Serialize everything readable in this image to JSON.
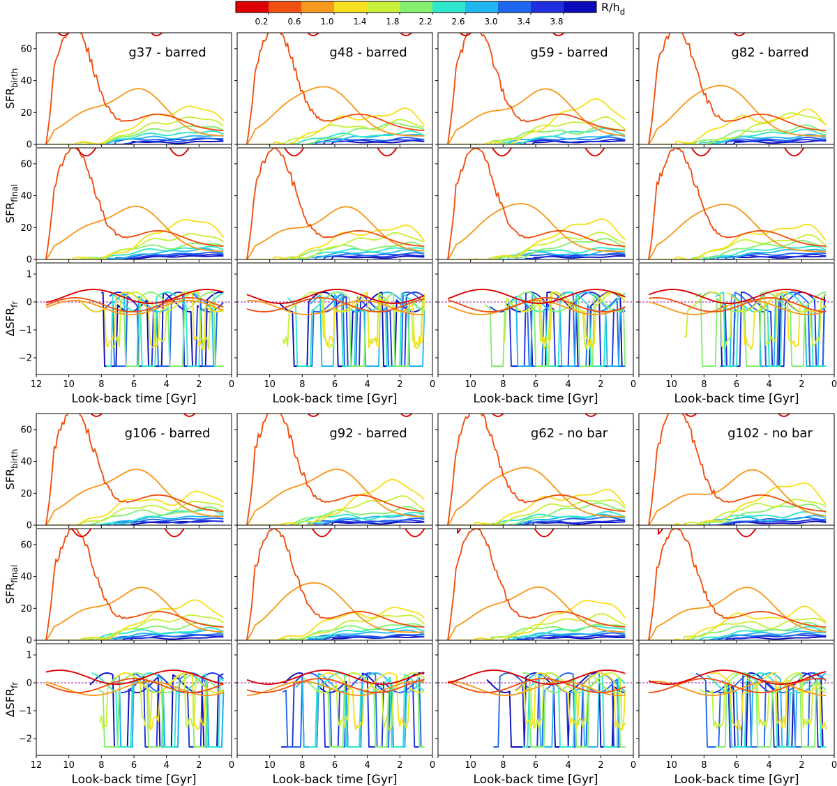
{
  "chart_data": {
    "type": "line",
    "colorbar": {
      "title": "R/h",
      "title_sub": "d",
      "tick_labels": [
        "0.2",
        "0.6",
        "1.0",
        "1.4",
        "1.8",
        "2.2",
        "2.6",
        "3.0",
        "3.4",
        "3.8"
      ],
      "colors": [
        "#dc0000",
        "#f05010",
        "#f79a1f",
        "#f7e020",
        "#c8f03a",
        "#86ef70",
        "#2ee7cc",
        "#21b6f0",
        "#2067ef",
        "#1f2fe0",
        "#0a0ab8"
      ]
    },
    "row_labels": {
      "birth": {
        "main": "SFR",
        "sub": "birth"
      },
      "final": {
        "main": "SFR",
        "sub": "final"
      },
      "delta": {
        "main": "ΔSFR",
        "sub": "fr"
      }
    },
    "xlabel": "Look-back time [Gyr]",
    "xlim": [
      12,
      0
    ],
    "x_ticks": [
      "12",
      "10",
      "8",
      "6",
      "4",
      "2",
      "0"
    ],
    "sfr_ylim": [
      0,
      70
    ],
    "sfr_ticks": [
      "0",
      "20",
      "40",
      "60"
    ],
    "delta_ylim": [
      -2.6,
      1.4
    ],
    "delta_ticks": [
      "1",
      "0",
      "−1",
      "−2"
    ],
    "galaxies": [
      {
        "name": "g37 - barred",
        "seed": 37
      },
      {
        "name": "g48 - barred",
        "seed": 48
      },
      {
        "name": "g59 - barred",
        "seed": 59
      },
      {
        "name": "g82 - barred",
        "seed": 82
      },
      {
        "name": "g106 - barred",
        "seed": 106
      },
      {
        "name": "g92 - barred",
        "seed": 92
      },
      {
        "name": "g62 - no bar",
        "seed": 62
      },
      {
        "name": "g102 - no bar",
        "seed": 102
      }
    ]
  }
}
